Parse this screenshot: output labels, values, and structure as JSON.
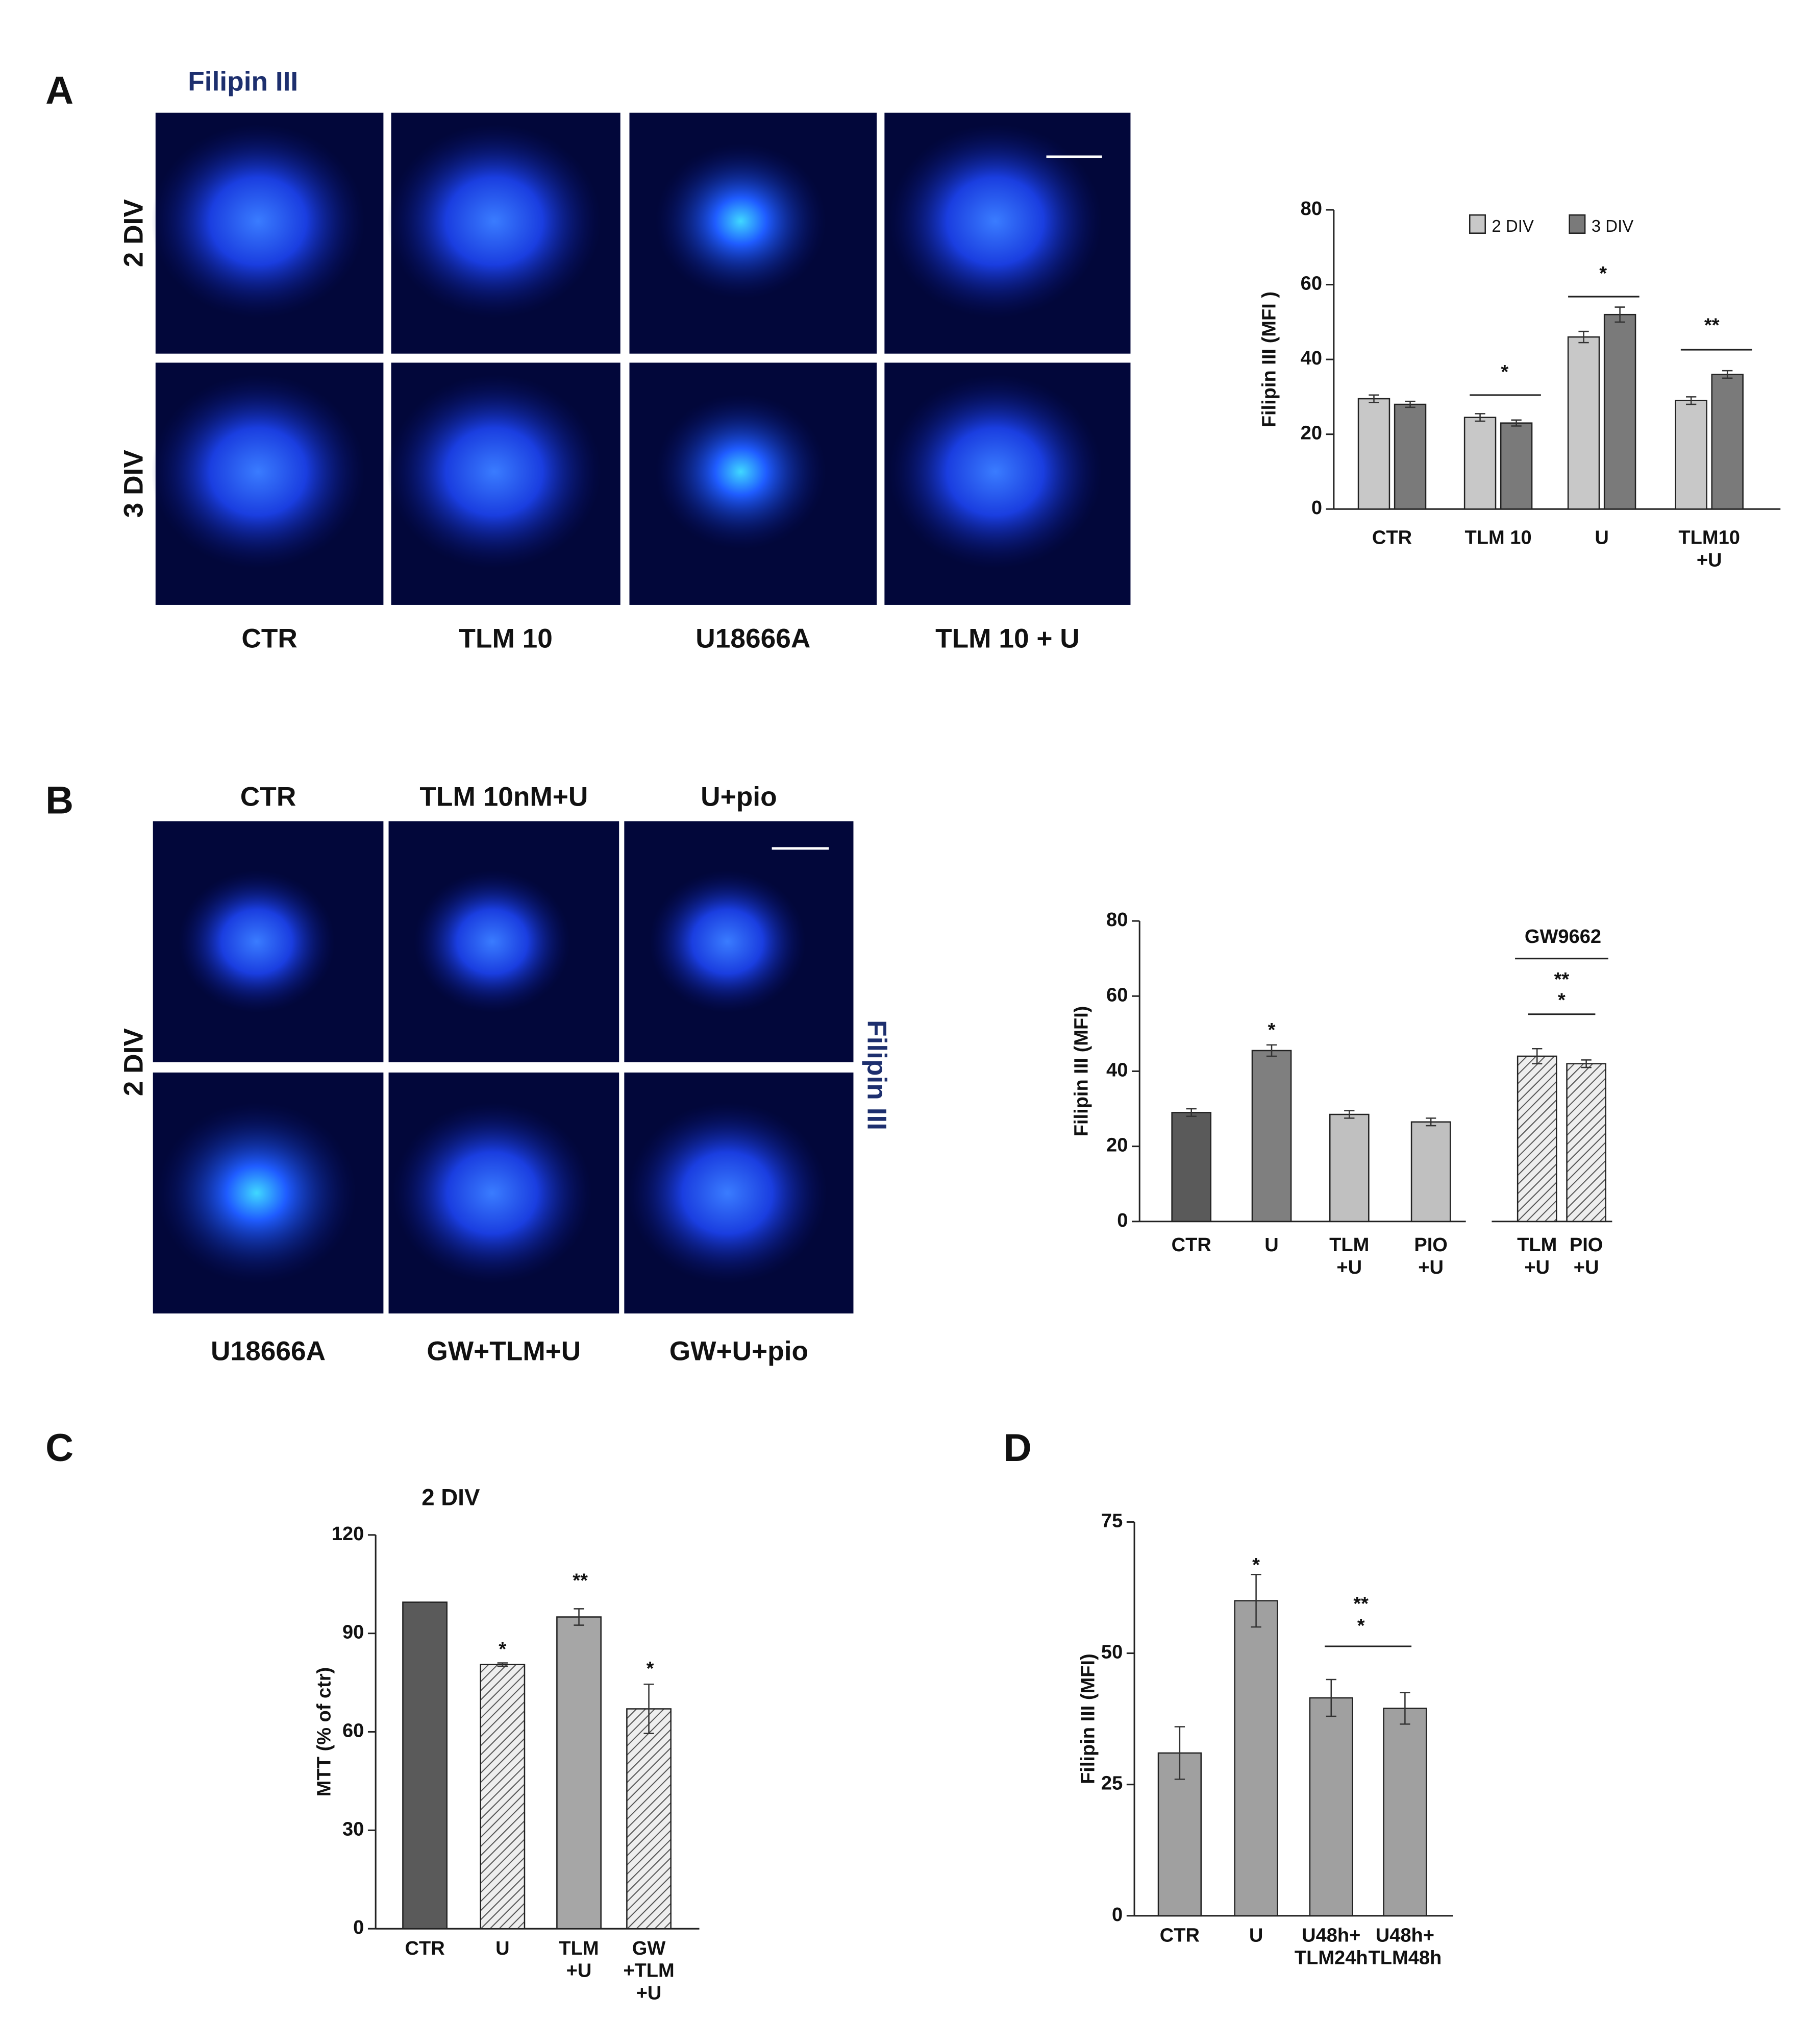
{
  "panels": {
    "A": {
      "label": "A",
      "stain": "Filipin III",
      "rows": [
        "2 DIV",
        "3 DIV"
      ],
      "columns": [
        "CTR",
        "TLM 10",
        "U18666A",
        "TLM 10 + U"
      ]
    },
    "B": {
      "label": "B",
      "top": [
        "CTR",
        "TLM 10nM+U",
        "U+pio"
      ],
      "row": "2 DIV",
      "bottom": [
        "U18666A",
        "GW+TLM+U",
        "GW+U+pio"
      ],
      "stain": "Filipin III"
    },
    "C": {
      "label": "C"
    },
    "D": {
      "label": "D"
    }
  },
  "chart_data": [
    {
      "type": "bar",
      "ylabel": "Filipin III (MFI )",
      "categories": [
        "CTR",
        "TLM 10",
        "U",
        "TLM10\n+U"
      ],
      "series": [
        {
          "name": "2 DIV",
          "color": "#c8c8c8",
          "values": [
            29.5,
            24.5,
            46,
            29
          ],
          "errors": [
            1,
            1,
            1.5,
            1
          ]
        },
        {
          "name": "3 DIV",
          "color": "#7a7a7a",
          "values": [
            28,
            23,
            52,
            36
          ],
          "errors": [
            0.8,
            0.8,
            2,
            1
          ]
        }
      ],
      "ylim": [
        0,
        80
      ],
      "yticks": [
        0,
        20,
        40,
        60,
        80
      ],
      "annotations": [
        "*",
        "*",
        "**"
      ]
    },
    {
      "type": "bar",
      "ylabel": "Filipin III (MFI)",
      "categories": [
        "CTR",
        "U",
        "TLM\n+U",
        "PIO\n+U",
        "TLM\n+U",
        "PIO\n+U"
      ],
      "values": [
        29,
        45.5,
        28.5,
        26.5,
        44,
        42
      ],
      "errors": [
        1,
        1.5,
        1,
        1,
        2,
        1
      ],
      "colors": [
        "#5a5a5a",
        "#7f7f7f",
        "#c0c0c0",
        "#c0c0c0",
        "#e6e6e6",
        "#e6e6e6"
      ],
      "hatch": [
        false,
        false,
        false,
        false,
        true,
        true
      ],
      "ylim": [
        0,
        80
      ],
      "yticks": [
        0,
        20,
        40,
        60,
        80
      ],
      "annotations": [
        "GW9662",
        "*",
        "**",
        "*"
      ]
    },
    {
      "type": "bar",
      "title": "2 DIV",
      "ylabel": "MTT (% of ctr)",
      "categories": [
        "CTR",
        "U",
        "TLM\n+U",
        "GW\n+TLM\n+U"
      ],
      "values": [
        99.5,
        80.5,
        95,
        67
      ],
      "errors": [
        0,
        0.5,
        2.5,
        7.5
      ],
      "colors": [
        "#5a5a5a",
        "#e6e6e6",
        "#a6a6a6",
        "#e6e6e6"
      ],
      "hatch": [
        false,
        true,
        false,
        true
      ],
      "ylim": [
        0,
        120
      ],
      "yticks": [
        0,
        30,
        60,
        90,
        120
      ],
      "annotations": [
        "*",
        "**",
        "*"
      ]
    },
    {
      "type": "bar",
      "ylabel": "Filipin III (MFI)",
      "categories": [
        "CTR",
        "U",
        "U48h+\nTLM24h",
        "U48h+\nTLM48h"
      ],
      "values": [
        31,
        60,
        41.5,
        39.5
      ],
      "errors": [
        5,
        5,
        3.5,
        3
      ],
      "colors": [
        "#a0a0a0",
        "#a0a0a0",
        "#a0a0a0",
        "#a0a0a0"
      ],
      "hatch": [
        false,
        false,
        false,
        false
      ],
      "ylim": [
        0,
        75
      ],
      "yticks": [
        0,
        25,
        50,
        75
      ],
      "annotations": [
        "*",
        "**",
        "*"
      ]
    }
  ]
}
